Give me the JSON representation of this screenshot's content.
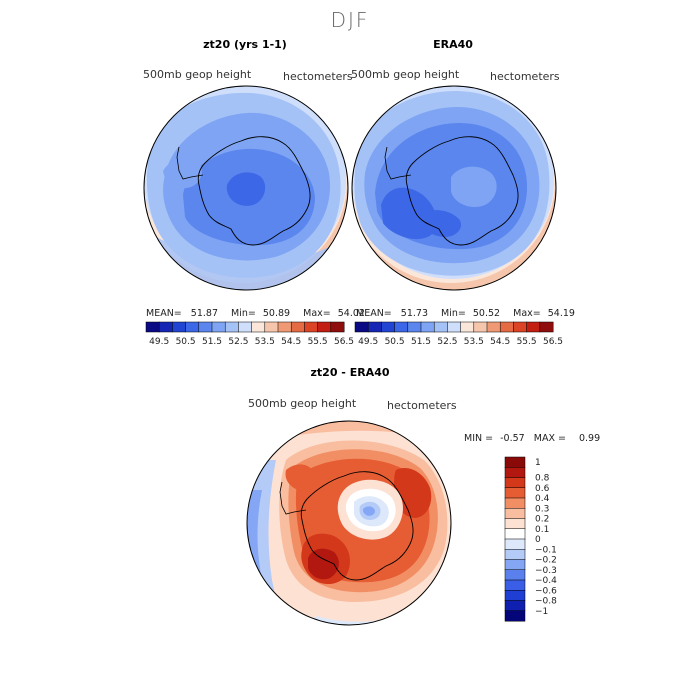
{
  "season": "DJF",
  "colors": {
    "abs_scale": [
      "#0a0a84",
      "#1526b4",
      "#2144d2",
      "#3c67e6",
      "#5b86ee",
      "#7ea4f3",
      "#a5c2f7",
      "#cfdffb",
      "#fbe6da",
      "#f6c6ac",
      "#ef9a74",
      "#e56b45",
      "#db4425",
      "#c21e12",
      "#8f0d0d"
    ],
    "diff_scale": [
      "#05057a",
      "#0f1fb0",
      "#1e3ed4",
      "#3a5fe6",
      "#5a80ee",
      "#84a6f4",
      "#b4cbf8",
      "#dde8fb",
      "#ffffff",
      "#fde2d3",
      "#f9bda0",
      "#f28e64",
      "#e65d33",
      "#d4381a",
      "#b31810",
      "#8a0a0a"
    ]
  },
  "panels": {
    "left": {
      "title": "zt20 (yrs 1-1)",
      "variable": "500mb geop height",
      "units": "hectometers",
      "mean_label": "MEAN=",
      "mean": "51.87",
      "min_label": "Min=",
      "min": "50.89",
      "max_label": "Max=",
      "max": "54.02"
    },
    "right": {
      "title": "ERA40",
      "variable": "500mb geop height",
      "units": "hectometers",
      "mean_label": "MEAN=",
      "mean": "51.73",
      "min_label": "Min=",
      "min": "50.52",
      "max_label": "Max=",
      "max": "54.19"
    },
    "diff": {
      "title": "zt20 - ERA40",
      "variable": "500mb geop height",
      "units": "hectometers",
      "min_label": "MIN =",
      "min": "-0.57",
      "max_label": "MAX =",
      "max": "0.99"
    }
  },
  "chart_data": [
    {
      "type": "heatmap",
      "title": "zt20 (yrs 1-1)",
      "projection": "south polar stereographic",
      "variable": "500mb geop height (hectometers)",
      "mean": 51.87,
      "min": 50.89,
      "max": 54.02,
      "colorbar_ticks": [
        "49.5",
        "50.5",
        "51.5",
        "52.5",
        "53.5",
        "54.5",
        "55.5",
        "56.5"
      ],
      "levels": [
        49.5,
        50,
        50.5,
        51,
        51.5,
        52,
        52.5,
        53,
        53.5,
        54,
        54.5,
        55,
        55.5,
        56,
        56.5
      ]
    },
    {
      "type": "heatmap",
      "title": "ERA40",
      "projection": "south polar stereographic",
      "variable": "500mb geop height (hectometers)",
      "mean": 51.73,
      "min": 50.52,
      "max": 54.19,
      "colorbar_ticks": [
        "49.5",
        "50.5",
        "51.5",
        "52.5",
        "53.5",
        "54.5",
        "55.5",
        "56.5"
      ],
      "levels": [
        49.5,
        50,
        50.5,
        51,
        51.5,
        52,
        52.5,
        53,
        53.5,
        54,
        54.5,
        55,
        55.5,
        56,
        56.5
      ]
    },
    {
      "type": "heatmap",
      "title": "zt20 - ERA40",
      "projection": "south polar stereographic",
      "variable": "500mb geop height difference (hectometers)",
      "min": -0.57,
      "max": 0.99,
      "colorbar_ticks": [
        "1",
        "0.8",
        "0.6",
        "0.4",
        "0.3",
        "0.2",
        "0.1",
        "0",
        "−0.1",
        "−0.2",
        "−0.3",
        "−0.4",
        "−0.6",
        "−0.8",
        "−1"
      ]
    }
  ]
}
